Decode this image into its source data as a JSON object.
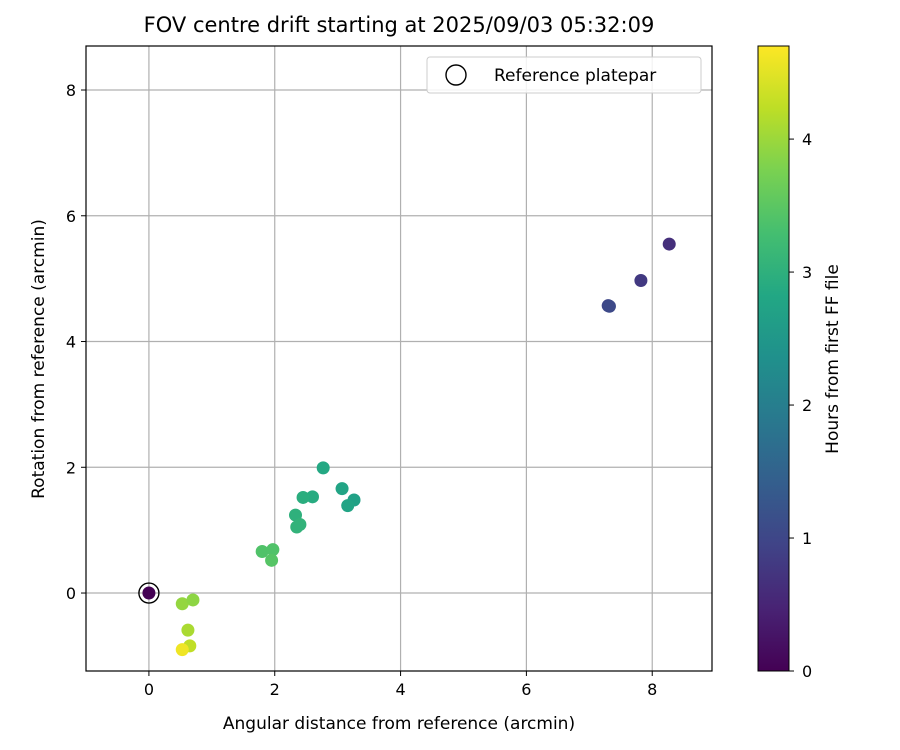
{
  "chart_data": {
    "type": "scatter",
    "title": "FOV centre drift starting at 2025/09/03 05:32:09",
    "xlabel": "Angular distance from reference (arcmin)",
    "ylabel": "Rotation from reference (arcmin)",
    "xlim": [
      -1.0,
      8.95
    ],
    "ylim": [
      -1.24,
      8.7
    ],
    "xticks": [
      0,
      2,
      4,
      6,
      8
    ],
    "yticks": [
      0,
      2,
      4,
      6,
      8
    ],
    "grid": true,
    "legend": {
      "position": "top-right",
      "entries": [
        "Reference platepar"
      ]
    },
    "colorbar": {
      "label": "Hours from first FF file",
      "colormap": "viridis",
      "range": [
        0,
        4.7
      ],
      "ticks": [
        0,
        1,
        2,
        3,
        4
      ]
    },
    "reference_point": {
      "x": 0,
      "y": 0,
      "hours": 0
    },
    "points": [
      {
        "x": 8.27,
        "y": 5.55,
        "hours": 0.65
      },
      {
        "x": 7.82,
        "y": 4.97,
        "hours": 0.8
      },
      {
        "x": 7.3,
        "y": 4.57,
        "hours": 1.0
      },
      {
        "x": 7.32,
        "y": 4.56,
        "hours": 1.05
      },
      {
        "x": 2.77,
        "y": 1.99,
        "hours": 2.85
      },
      {
        "x": 3.07,
        "y": 1.66,
        "hours": 2.75
      },
      {
        "x": 3.26,
        "y": 1.48,
        "hours": 2.7
      },
      {
        "x": 3.16,
        "y": 1.39,
        "hours": 2.75
      },
      {
        "x": 2.6,
        "y": 1.53,
        "hours": 2.9
      },
      {
        "x": 2.45,
        "y": 1.52,
        "hours": 2.95
      },
      {
        "x": 2.33,
        "y": 1.24,
        "hours": 3.0
      },
      {
        "x": 2.35,
        "y": 1.05,
        "hours": 3.05
      },
      {
        "x": 2.4,
        "y": 1.09,
        "hours": 3.05
      },
      {
        "x": 1.8,
        "y": 0.66,
        "hours": 3.4
      },
      {
        "x": 1.97,
        "y": 0.69,
        "hours": 3.4
      },
      {
        "x": 1.95,
        "y": 0.52,
        "hours": 3.45
      },
      {
        "x": 0.53,
        "y": -0.17,
        "hours": 3.95
      },
      {
        "x": 0.7,
        "y": -0.11,
        "hours": 3.9
      },
      {
        "x": 0.62,
        "y": -0.59,
        "hours": 4.1
      },
      {
        "x": 0.65,
        "y": -0.84,
        "hours": 4.25
      },
      {
        "x": 0.53,
        "y": -0.9,
        "hours": 4.6
      }
    ]
  }
}
